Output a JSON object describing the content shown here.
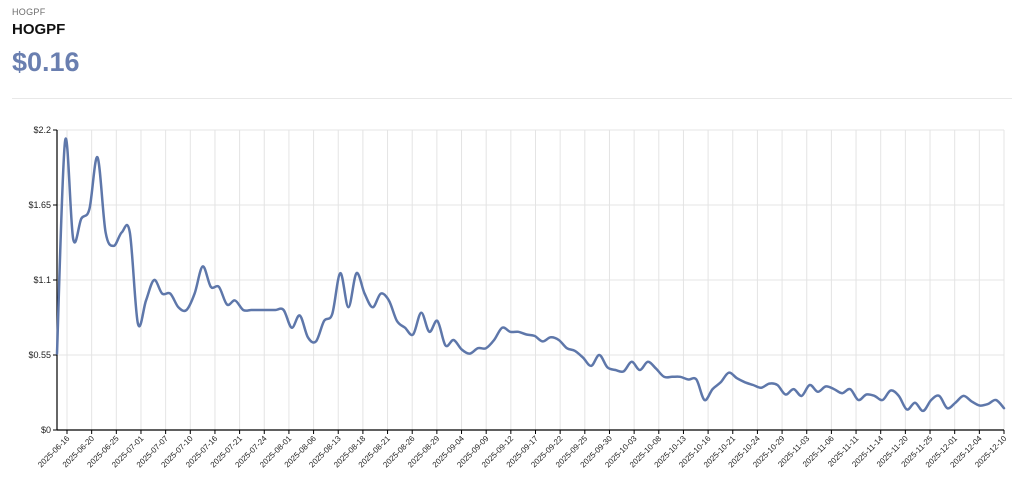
{
  "header": {
    "ticker_small": "HOGPF",
    "ticker": "HOGPF",
    "price": "$0.16"
  },
  "colors": {
    "line": "#5e77aa",
    "price": "#6a7fb0",
    "grid": "#e4e4e4",
    "axis": "#000000"
  },
  "chart_data": {
    "type": "line",
    "grid": true,
    "ylim": [
      0,
      2.2
    ],
    "y_ticks": [
      0,
      0.55,
      1.1,
      1.65,
      2.2
    ],
    "y_tick_labels": [
      "$0",
      "$0.55",
      "$1.1",
      "$1.65",
      "$2.2"
    ],
    "x_tick_labels": [
      "2025-06-16",
      "2025-06-20",
      "2025-06-25",
      "2025-07-01",
      "2025-07-07",
      "2025-07-10",
      "2025-07-16",
      "2025-07-21",
      "2025-07-24",
      "2025-08-01",
      "2025-08-06",
      "2025-08-13",
      "2025-08-18",
      "2025-08-21",
      "2025-08-26",
      "2025-08-29",
      "2025-09-04",
      "2025-09-09",
      "2025-09-12",
      "2025-09-17",
      "2025-09-22",
      "2025-09-25",
      "2025-09-30",
      "2025-10-03",
      "2025-10-08",
      "2025-10-13",
      "2025-10-16",
      "2025-10-21",
      "2025-10-24",
      "2025-10-29",
      "2025-11-03",
      "2025-11-06",
      "2025-11-11",
      "2025-11-14",
      "2025-11-20",
      "2025-11-25",
      "2025-12-01",
      "2025-12-04",
      "2025-12-10"
    ],
    "series": [
      {
        "values": [
          0.56,
          2.12,
          1.4,
          1.55,
          1.62,
          2.0,
          1.45,
          1.35,
          1.45,
          1.45,
          0.78,
          0.95,
          1.1,
          1.0,
          1.0,
          0.9,
          0.88,
          1.0,
          1.2,
          1.05,
          1.05,
          0.92,
          0.95,
          0.88,
          0.88,
          0.88,
          0.88,
          0.88,
          0.88,
          0.75,
          0.84,
          0.68,
          0.65,
          0.8,
          0.85,
          1.15,
          0.9,
          1.15,
          1.0,
          0.9,
          1.0,
          0.95,
          0.8,
          0.75,
          0.7,
          0.86,
          0.72,
          0.8,
          0.62,
          0.66,
          0.59,
          0.56,
          0.6,
          0.6,
          0.66,
          0.75,
          0.72,
          0.72,
          0.7,
          0.69,
          0.65,
          0.68,
          0.66,
          0.6,
          0.58,
          0.53,
          0.47,
          0.55,
          0.46,
          0.44,
          0.43,
          0.5,
          0.44,
          0.5,
          0.45,
          0.39,
          0.39,
          0.39,
          0.37,
          0.37,
          0.22,
          0.3,
          0.35,
          0.42,
          0.38,
          0.35,
          0.33,
          0.31,
          0.34,
          0.33,
          0.26,
          0.3,
          0.25,
          0.33,
          0.28,
          0.32,
          0.3,
          0.27,
          0.3,
          0.22,
          0.26,
          0.25,
          0.22,
          0.29,
          0.25,
          0.15,
          0.2,
          0.14,
          0.22,
          0.25,
          0.16,
          0.2,
          0.25,
          0.21,
          0.18,
          0.19,
          0.22,
          0.16
        ]
      }
    ]
  }
}
